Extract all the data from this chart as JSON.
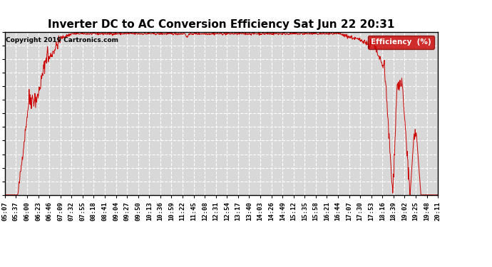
{
  "title": "Inverter DC to AC Conversion Efficiency Sat Jun 22 20:31",
  "copyright": "Copyright 2019 Cartronics.com",
  "legend_label": "Efficiency  (%)",
  "legend_bg": "#cc0000",
  "line_color": "#cc0000",
  "bg_color": "#ffffff",
  "plot_bg_color": "#d8d8d8",
  "grid_color": "#ffffff",
  "ylim": [
    0.0,
    96.5
  ],
  "yticks": [
    0.0,
    8.0,
    16.1,
    24.1,
    32.2,
    40.2,
    48.2,
    56.3,
    64.3,
    72.4,
    80.4,
    88.5,
    96.5
  ],
  "x_labels": [
    "05:07",
    "05:37",
    "06:00",
    "06:23",
    "06:46",
    "07:09",
    "07:32",
    "07:55",
    "08:18",
    "08:41",
    "09:04",
    "09:27",
    "09:50",
    "10:13",
    "10:36",
    "10:59",
    "11:22",
    "11:45",
    "12:08",
    "12:31",
    "12:54",
    "13:17",
    "13:40",
    "14:03",
    "14:26",
    "14:49",
    "15:12",
    "15:35",
    "15:58",
    "16:21",
    "16:44",
    "17:07",
    "17:30",
    "17:53",
    "18:16",
    "18:39",
    "19:02",
    "19:25",
    "19:48",
    "20:11"
  ],
  "title_fontsize": 11,
  "label_fontsize": 6.5,
  "copyright_fontsize": 6.5,
  "ytick_fontsize": 8.5
}
